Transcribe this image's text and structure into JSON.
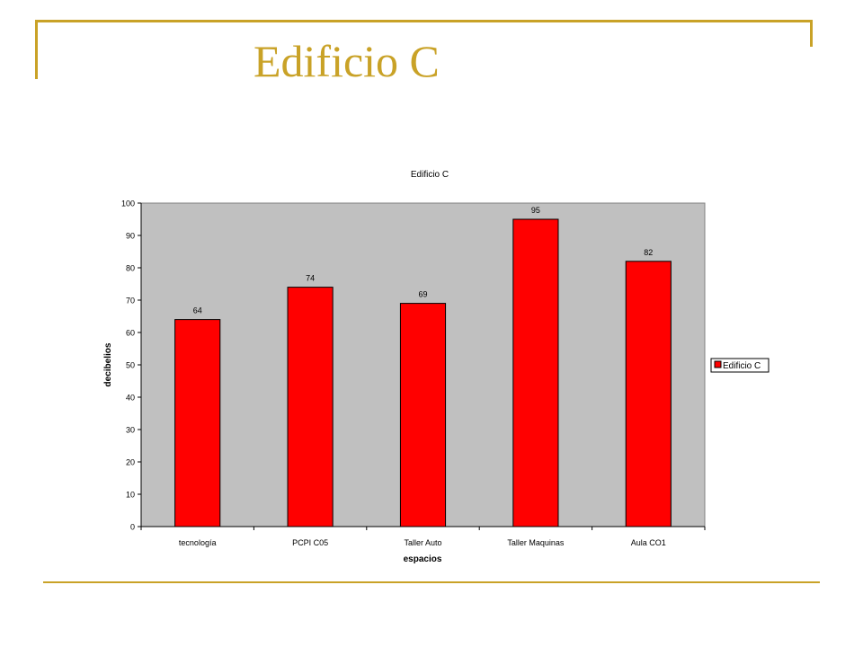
{
  "slide": {
    "title": "Edificio C"
  },
  "colors": {
    "accent": "#c9a227",
    "bar": "#ff0000",
    "plot_bg": "#c0c0c0"
  },
  "chart_data": {
    "type": "bar",
    "title": "Edificio C",
    "xlabel": "espacios",
    "ylabel": "decibelios",
    "categories": [
      "tecnología",
      "PCPI C05",
      "Taller Auto",
      "Taller Maquinas",
      "Aula CO1"
    ],
    "series": [
      {
        "name": "Edificio C",
        "values": [
          64,
          74,
          69,
          95,
          82
        ]
      }
    ],
    "ylim": [
      0,
      100
    ],
    "yticks": [
      0,
      10,
      20,
      30,
      40,
      50,
      60,
      70,
      80,
      90,
      100
    ],
    "data_labels": true,
    "grid": false,
    "legend": "right"
  }
}
